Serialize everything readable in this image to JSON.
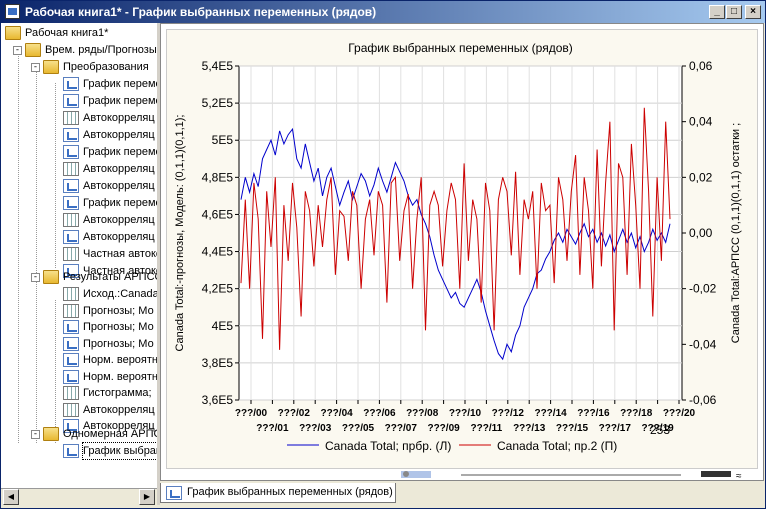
{
  "window": {
    "title": "Рабочая книга1* - График выбранных переменных (рядов)",
    "minimize": "_",
    "maximize": "□",
    "close": "×"
  },
  "tree": {
    "root": "Рабочая книга1*",
    "node1": "Врем. ряды/Прогнозы",
    "node2": "Преобразования",
    "node2_items": [
      {
        "label": "График переменных",
        "icon": "graph-icon"
      },
      {
        "label": "График переменных",
        "icon": "graph-icon"
      },
      {
        "label": "Автокорреляц",
        "icon": "table-icon"
      },
      {
        "label": "Автокорреляц",
        "icon": "graph-icon"
      },
      {
        "label": "График переменных",
        "icon": "graph-icon"
      },
      {
        "label": "Автокорреляц",
        "icon": "table-icon"
      },
      {
        "label": "Автокорреляц",
        "icon": "graph-icon"
      },
      {
        "label": "График переменных",
        "icon": "graph-icon"
      },
      {
        "label": "Автокорреляц",
        "icon": "table-icon"
      },
      {
        "label": "Автокорреляц",
        "icon": "graph-icon"
      },
      {
        "label": "Частная автокорр",
        "icon": "table-icon"
      },
      {
        "label": "Частная автокорр",
        "icon": "graph-icon"
      }
    ],
    "node3": "Результаты АРПСС",
    "node3_items": [
      {
        "label": "Исход.:Canada",
        "icon": "table-icon"
      },
      {
        "label": "Прогнозы; Мо",
        "icon": "table-icon"
      },
      {
        "label": "Прогнозы; Мо",
        "icon": "graph-icon"
      },
      {
        "label": "Прогнозы; Мо",
        "icon": "graph-icon"
      },
      {
        "label": "Норм. вероятн",
        "icon": "graph-icon"
      },
      {
        "label": "Норм. вероятн",
        "icon": "graph-icon"
      },
      {
        "label": "Гистограмма;",
        "icon": "table-icon"
      },
      {
        "label": "Автокорреляц",
        "icon": "table-icon"
      },
      {
        "label": "Автокорреляц",
        "icon": "graph-icon"
      }
    ],
    "node4": "Одномерная АРПСС",
    "node4_items": [
      {
        "label": "График выбранных",
        "icon": "graph-icon"
      }
    ]
  },
  "tab": {
    "label": "График выбранных переменных (рядов)"
  },
  "chart_data": {
    "type": "line",
    "title": "График выбранных переменных (рядов)",
    "ylabel_left": "Canada Total:-прогнозы, Модель: (0,1,1)(0,1,1);",
    "ylabel_right": "Canada Total:АРПСС (0,1,1)(0,1,1) остатки ;",
    "y_left_ticks": [
      "3,6E5",
      "3,8E5",
      "4E5",
      "4,2E5",
      "4,4E5",
      "4,6E5",
      "4,8E5",
      "5E5",
      "5,2E5",
      "5,4E5"
    ],
    "y_left_range": [
      360000,
      540000
    ],
    "y_right_ticks": [
      "-0,06",
      "-0,04",
      "-0,02",
      "0,00",
      "0,02",
      "0,04",
      "0,06"
    ],
    "y_right_range": [
      -0.06,
      0.06
    ],
    "x_ticks_top": [
      "???/00",
      "???/02",
      "???/04",
      "???/06",
      "???/08",
      "???/10",
      "???/12",
      "???/14",
      "???/16",
      "???/18",
      "???/20"
    ],
    "x_ticks_bottom": [
      "???/01",
      "???/03",
      "???/05",
      "???/07",
      "???/09",
      "???/11",
      "???/13",
      "???/15",
      "???/17",
      "???/19"
    ],
    "x_end_label": "253",
    "grid": true,
    "legend": "bottom",
    "series": [
      {
        "name": "Canada Total; прбр. (Л)",
        "color": "#0000cc",
        "axis": "left",
        "values": [
          468000,
          480000,
          472000,
          482000,
          475000,
          490000,
          495000,
          500000,
          492000,
          505000,
          498000,
          503000,
          506000,
          490000,
          485000,
          498000,
          488000,
          478000,
          485000,
          470000,
          480000,
          485000,
          475000,
          465000,
          472000,
          478000,
          468000,
          475000,
          482000,
          478000,
          470000,
          476000,
          485000,
          478000,
          472000,
          480000,
          488000,
          483000,
          478000,
          470000,
          465000,
          468000,
          460000,
          455000,
          448000,
          438000,
          430000,
          425000,
          420000,
          415000,
          418000,
          412000,
          410000,
          415000,
          420000,
          425000,
          418000,
          408000,
          400000,
          392000,
          385000,
          382000,
          390000,
          386000,
          395000,
          400000,
          410000,
          415000,
          420000,
          428000,
          430000,
          436000,
          440000,
          446000,
          450000,
          445000,
          452000,
          448000,
          444000,
          450000,
          455000,
          448000,
          452000,
          445000,
          450000,
          443000,
          449000,
          440000,
          446000,
          452000,
          445000,
          450000,
          442000,
          448000,
          440000,
          445000,
          452000,
          446000,
          450000,
          445000,
          455000
        ]
      },
      {
        "name": "Canada Total; пр.2 (П)",
        "color": "#cc0000",
        "axis": "right",
        "values": [
          -0.018,
          0.012,
          -0.02,
          0.018,
          0.005,
          -0.038,
          0.015,
          -0.005,
          0.02,
          -0.042,
          0.01,
          -0.01,
          0.018,
          0.002,
          -0.03,
          0.015,
          0.008,
          -0.012,
          0.01,
          -0.005,
          0.012,
          0.02,
          -0.015,
          0.008,
          0.006,
          -0.01,
          0.015,
          0.01,
          -0.02,
          0.005,
          0.012,
          -0.008,
          0.015,
          0.01,
          -0.025,
          0.018,
          0.02,
          -0.01,
          0.008,
          0.014,
          -0.02,
          0.005,
          0.02,
          -0.035,
          0.01,
          0.015,
          0.01,
          -0.012,
          0.008,
          0.018,
          0.012,
          -0.02,
          0.025,
          -0.01,
          0.012,
          0.005,
          -0.025,
          0.018,
          0.008,
          -0.035,
          0.012,
          0.02,
          0.015,
          -0.008,
          0.022,
          -0.015,
          0.012,
          0.005,
          0.015,
          -0.02,
          0.018,
          0.008,
          0.01,
          -0.018,
          0.02,
          0.012,
          -0.01,
          0.015,
          0.028,
          -0.015,
          0.02,
          0.008,
          -0.02,
          0.03,
          -0.012,
          0.018,
          0.04,
          -0.035,
          0.025,
          0.02,
          -0.015,
          0.032,
          0.01,
          -0.02,
          0.045,
          0.015,
          -0.03,
          0.02,
          -0.01,
          0.04,
          0.005
        ]
      }
    ]
  }
}
